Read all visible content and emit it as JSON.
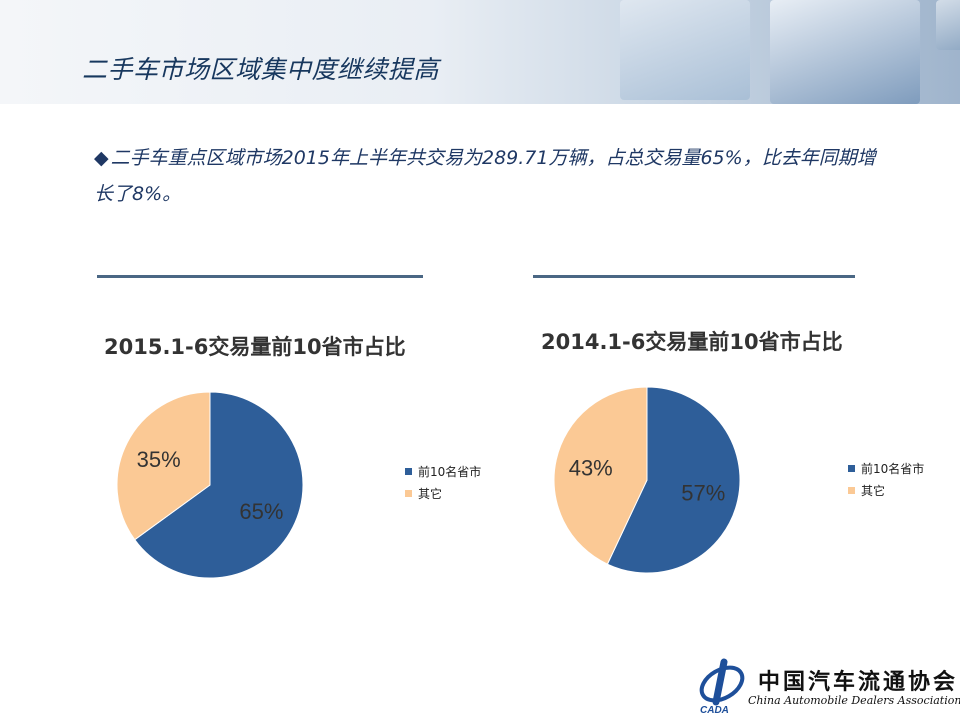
{
  "slide": {
    "title": "二手车市场区域集中度继续提高",
    "bullet_symbol": "◆",
    "bullet_text": "二手车重点区域市场2015年上半年共交易为289.71万辆，占总交易量65%，比去年同期增长了8%。"
  },
  "colors": {
    "blue": "#2e5e99",
    "peach": "#fbc995",
    "title": "#17375e",
    "rule": "#4a6784"
  },
  "chart_data": [
    {
      "type": "pie",
      "title": "2015.1-6交易量前10省市占比",
      "categories": [
        "前10名省市",
        "其它"
      ],
      "values": [
        65,
        35
      ],
      "labels": [
        "65%",
        "35%"
      ],
      "legend_position": "right"
    },
    {
      "type": "pie",
      "title": "2014.1-6交易量前10省市占比",
      "categories": [
        "前10名省市",
        "其它"
      ],
      "values": [
        57,
        43
      ],
      "labels": [
        "57%",
        "43%"
      ],
      "legend_position": "right"
    }
  ],
  "logo": {
    "chinese": "中国汽车流通协会",
    "english": "China Automobile Dealers Association",
    "mark": "CADA"
  }
}
